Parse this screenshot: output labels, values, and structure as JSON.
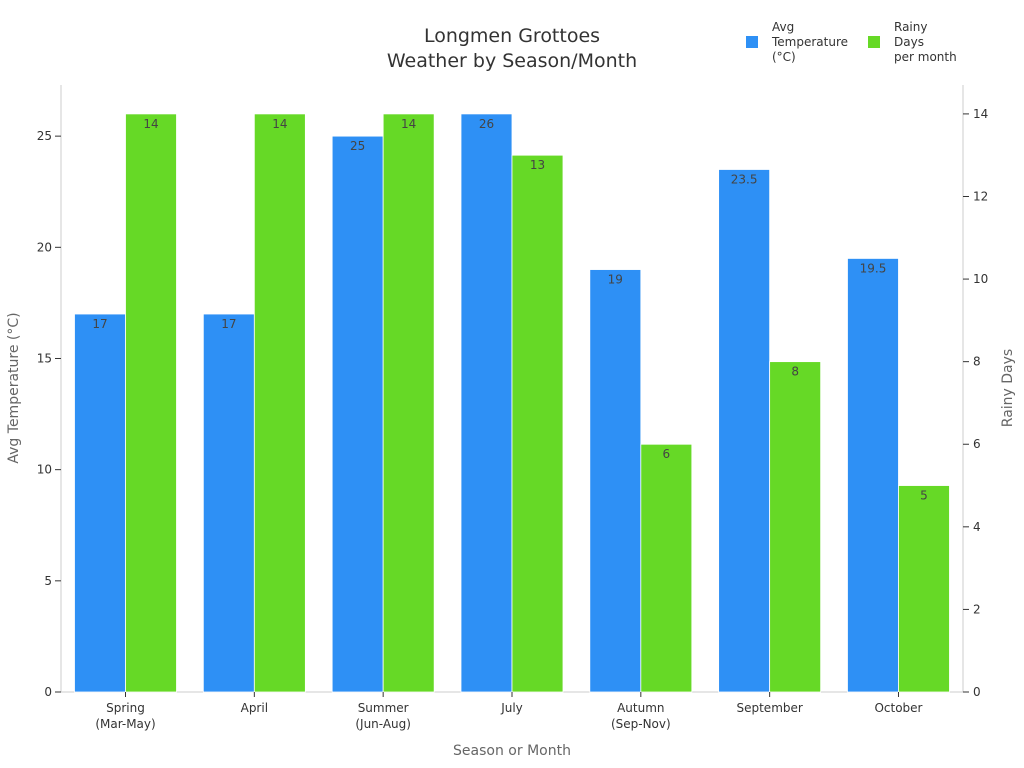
{
  "chart_data": {
    "type": "bar",
    "title": [
      "Longmen Grottoes",
      "Weather by Season/Month"
    ],
    "xlabel": "Season or Month",
    "ylabel": "Avg Temperature (°C)",
    "y2label": "Rainy Days",
    "categories": [
      [
        "Spring",
        "(Mar-May)"
      ],
      [
        "April"
      ],
      [
        "Summer",
        "(Jun-Aug)"
      ],
      [
        "July"
      ],
      [
        "Autumn",
        "(Sep-Nov)"
      ],
      [
        "September"
      ],
      [
        "October"
      ]
    ],
    "series": [
      {
        "name": [
          "Avg",
          "Temperature",
          "(°C)"
        ],
        "axis": "left",
        "color": "#2e90f5",
        "values": [
          17,
          17,
          25,
          26,
          19,
          23.5,
          19.5
        ],
        "labels": [
          "17",
          "17",
          "25",
          "26",
          "19",
          "23.5",
          "19.5"
        ]
      },
      {
        "name": [
          "Rainy",
          "Days",
          "per month"
        ],
        "axis": "right",
        "color": "#66d926",
        "values": [
          14,
          14,
          14,
          13,
          6,
          8,
          5
        ],
        "labels": [
          "14",
          "14",
          "14",
          "13",
          "6",
          "8",
          "5"
        ]
      }
    ],
    "ylim": [
      0,
      27.3
    ],
    "y2lim": [
      0,
      14.7
    ],
    "yticks": [
      0,
      5,
      10,
      15,
      20,
      25
    ],
    "y2ticks": [
      0,
      2,
      4,
      6,
      8,
      10,
      12,
      14
    ],
    "grid": false,
    "legend": "top-right"
  }
}
